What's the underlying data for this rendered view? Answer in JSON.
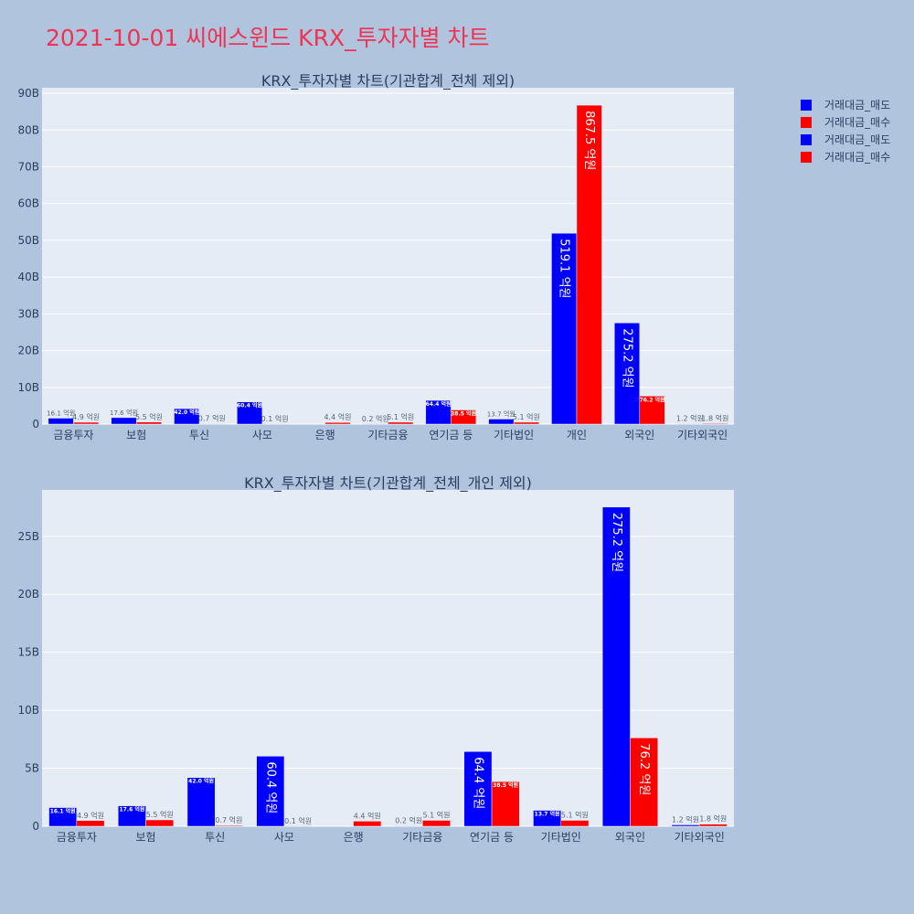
{
  "title": "2021-10-01 씨에스윈드 KRX_투자자별 차트",
  "colors": {
    "sell": "#0000ff",
    "buy": "#ff0000",
    "plot_bg": "#e5ecf6",
    "page_bg": "#b0c4de",
    "title": "#ee3355"
  },
  "legend": {
    "placement": "top-right",
    "entries": [
      {
        "name": "거래대금_매도",
        "color": "#0000ff"
      },
      {
        "name": "거래대금_매수",
        "color": "#ff0000"
      },
      {
        "name": "거래대금_매도",
        "color": "#0000ff"
      },
      {
        "name": "거래대금_매수",
        "color": "#ff0000"
      }
    ]
  },
  "chart_data": [
    {
      "type": "bar",
      "title": "KRX_투자자별 차트(기관합계_전체 제외)",
      "categories": [
        "금융투자",
        "보험",
        "투신",
        "사모",
        "은행",
        "기타금융",
        "연기금 등",
        "기타법인",
        "개인",
        "외국인",
        "기타외국인"
      ],
      "series": [
        {
          "name": "거래대금_매도",
          "values": [
            1610000000,
            1760000000,
            4200000000,
            6040000000,
            0,
            20000000,
            6440000000,
            1370000000,
            51910000000,
            27520000000,
            120000000
          ],
          "labels": [
            "16.1 억원",
            "17.6 억원",
            "42.0 억원",
            "60.4 억원",
            "",
            "0.2 억원",
            "64.4 억원",
            "13.7 억원",
            "519.1 억원",
            "275.2 억원",
            "1.2 억원"
          ]
        },
        {
          "name": "거래대금_매수",
          "values": [
            490000000,
            550000000,
            70000000,
            10000000,
            440000000,
            510000000,
            3850000000,
            510000000,
            86750000000,
            7620000000,
            180000000
          ],
          "labels": [
            "4.9 억원",
            "5.5 억원",
            "0.7 억원",
            "0.1 억원",
            "4.4 억원",
            "5.1 억원",
            "38.5 억원",
            "5.1 억원",
            "867.5 억원",
            "76.2 억원",
            "1.8 억원"
          ]
        }
      ],
      "yticks": [
        0,
        10000000000,
        20000000000,
        30000000000,
        40000000000,
        50000000000,
        60000000000,
        70000000000,
        80000000000,
        90000000000
      ],
      "ytick_labels": [
        "0",
        "10B",
        "20B",
        "30B",
        "40B",
        "50B",
        "60B",
        "70B",
        "80B",
        "90B"
      ],
      "ylim": [
        0,
        91500000000
      ],
      "grid": true
    },
    {
      "type": "bar",
      "title": "KRX_투자자별 차트(기관합계_전체_개인 제외)",
      "categories": [
        "금융투자",
        "보험",
        "투신",
        "사모",
        "은행",
        "기타금융",
        "연기금 등",
        "기타법인",
        "외국인",
        "기타외국인"
      ],
      "series": [
        {
          "name": "거래대금_매도",
          "values": [
            1610000000,
            1760000000,
            4200000000,
            6040000000,
            0,
            20000000,
            6440000000,
            1370000000,
            27520000000,
            120000000
          ],
          "labels": [
            "16.1 억원",
            "17.6 억원",
            "42.0 억원",
            "60.4 억원",
            "",
            "0.2 억원",
            "64.4 억원",
            "13.7 억원",
            "275.2 억원",
            "1.2 억원"
          ]
        },
        {
          "name": "거래대금_매수",
          "values": [
            490000000,
            550000000,
            70000000,
            10000000,
            440000000,
            510000000,
            3850000000,
            510000000,
            7620000000,
            180000000
          ],
          "labels": [
            "4.9 억원",
            "5.5 억원",
            "0.7 억원",
            "0.1 억원",
            "4.4 억원",
            "5.1 억원",
            "38.5 억원",
            "5.1 억원",
            "76.2 억원",
            "1.8 억원"
          ]
        }
      ],
      "yticks": [
        0,
        5000000000,
        10000000000,
        15000000000,
        20000000000,
        25000000000
      ],
      "ytick_labels": [
        "0",
        "5B",
        "10B",
        "15B",
        "20B",
        "25B"
      ],
      "ylim": [
        0,
        29000000000
      ],
      "grid": true
    }
  ]
}
